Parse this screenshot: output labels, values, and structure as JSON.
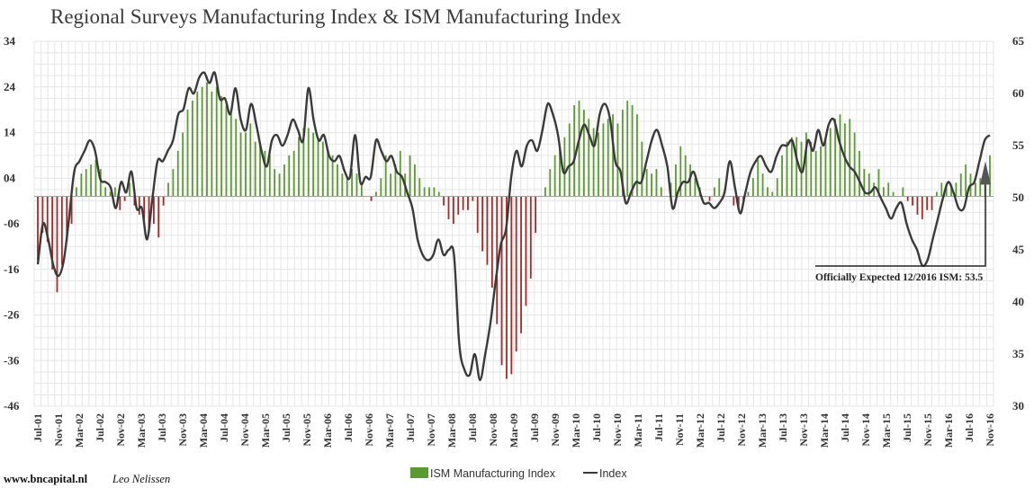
{
  "chart_data": {
    "type": "bar+line",
    "title": "Regional Surveys Manufacturing Index & ISM Manufacturing Index",
    "y_left": {
      "min": -46,
      "max": 34,
      "ticks": [
        "34",
        "24",
        "14",
        "04",
        "-06",
        "-16",
        "-26",
        "-36",
        "-46"
      ]
    },
    "y_right": {
      "min": 30,
      "max": 65,
      "ticks": [
        "65",
        "60",
        "55",
        "50",
        "45",
        "40",
        "35",
        "30"
      ]
    },
    "x_tick_labels": [
      "Jul-01",
      "Nov-01",
      "Mar-02",
      "Jul-02",
      "Nov-02",
      "Mar-03",
      "Jul-03",
      "Nov-03",
      "Mar-04",
      "Jul-04",
      "Nov-04",
      "Mar-05",
      "Jul-05",
      "Nov-05",
      "Mar-06",
      "Jul-06",
      "Nov-06",
      "Mar-07",
      "Jul-07",
      "Nov-07",
      "Mar-08",
      "Jul-08",
      "Nov-08",
      "Mar-09",
      "Jul-09",
      "Nov-09",
      "Mar-10",
      "Jul-10",
      "Nov-10",
      "Mar-11",
      "Jul-11",
      "Nov-11",
      "Mar-12",
      "Jul-12",
      "Nov-12",
      "Mar-13",
      "Jul-13",
      "Nov-13",
      "Mar-14",
      "Jul-14",
      "Nov-14",
      "Mar-15",
      "Jul-15",
      "Nov-15",
      "Mar-16",
      "Jul-16",
      "Nov-16"
    ],
    "series": [
      {
        "name": "ISM Manufacturing Index",
        "type": "bar",
        "axis": "left",
        "color_positive": "#5b9a32",
        "color_negative": "#a52a2a",
        "start": "Jul-01",
        "values": [
          -14,
          -8,
          -10,
          -16,
          -21,
          -15,
          -10,
          -6,
          2,
          5,
          6,
          7,
          8,
          6,
          2,
          1,
          2,
          -3,
          -1,
          3,
          -2,
          -4,
          -6,
          -7,
          -6,
          -9,
          -2,
          3,
          6,
          10,
          14,
          19,
          21,
          23,
          24,
          25,
          23,
          24,
          22,
          20,
          19,
          17,
          14,
          14,
          16,
          12,
          12,
          10,
          9,
          6,
          5,
          7,
          9,
          10,
          13,
          15,
          15,
          14,
          13,
          12,
          10,
          9,
          7,
          5,
          4,
          6,
          5,
          3,
          0,
          -1,
          1,
          4,
          9,
          5,
          7,
          10,
          5,
          9,
          7,
          4,
          2,
          2,
          2,
          1,
          -2,
          -5,
          -6,
          -4,
          -3,
          -3,
          -1,
          -8,
          -12,
          -15,
          -20,
          -28,
          -37,
          -40,
          -39,
          -34,
          -30,
          -24,
          -18,
          -8,
          0,
          2,
          6,
          9,
          11,
          13,
          16,
          20,
          21,
          19,
          17,
          15,
          14,
          16,
          17,
          18,
          16,
          19,
          21,
          20,
          18,
          12,
          6,
          5,
          6,
          2,
          0,
          3,
          7,
          11,
          9,
          7,
          4,
          2,
          0,
          -1,
          2,
          4,
          1,
          0,
          -2,
          -3,
          -1,
          1,
          4,
          8,
          5,
          2,
          1,
          4,
          9,
          12,
          13,
          13,
          12,
          14,
          12,
          10,
          11,
          13,
          15,
          17,
          18,
          16,
          17,
          14,
          10,
          6,
          5,
          3,
          6,
          2,
          3,
          1,
          0,
          2,
          -1,
          -2,
          -4,
          -5,
          -3,
          -3,
          1,
          3,
          2,
          2,
          3,
          5,
          7,
          5,
          3,
          4,
          6,
          9
        ]
      },
      {
        "name": "Index",
        "type": "line",
        "axis": "right",
        "color": "#3a3a3a",
        "start": "Jul-01",
        "values": [
          43.6,
          47.5,
          46.0,
          43.5,
          42.5,
          44.0,
          48.0,
          52.5,
          53.5,
          54.5,
          55.5,
          54.5,
          51.8,
          51.5,
          51.0,
          49.0,
          51.5,
          50.5,
          52.5,
          49.0,
          49.0,
          46.0,
          49.8,
          53.5,
          53.5,
          54.5,
          55.5,
          58.0,
          58.5,
          60.5,
          60.0,
          61.5,
          62.0,
          61.0,
          62.0,
          59.5,
          59.5,
          58.0,
          60.5,
          57.5,
          56.5,
          59.0,
          57.0,
          54.5,
          53.0,
          55.5,
          56.0,
          55.0,
          56.0,
          57.5,
          56.5,
          55.5,
          60.5,
          57.5,
          55.5,
          56.0,
          54.0,
          53.5,
          54.0,
          52.5,
          52.0,
          56.0,
          51.5,
          52.0,
          52.0,
          55.5,
          54.5,
          53.5,
          54.0,
          52.5,
          52.0,
          50.5,
          49.0,
          46.0,
          44.5,
          44.0,
          44.5,
          46.0,
          44.5,
          45.0,
          44.5,
          36.0,
          33.5,
          33.0,
          35.0,
          32.5,
          35.0,
          38.0,
          42.0,
          45.5,
          47.0,
          52.0,
          54.5,
          53.0,
          55.0,
          55.5,
          54.5,
          56.5,
          59.0,
          58.0,
          56.0,
          52.5,
          53.0,
          53.5,
          55.5,
          57.0,
          56.0,
          55.0,
          58.0,
          59.0,
          57.5,
          53.5,
          52.5,
          49.5,
          50.5,
          51.5,
          51.5,
          53.5,
          55.5,
          56.5,
          55.0,
          53.0,
          49.0,
          50.5,
          51.5,
          51.5,
          52.5,
          51.0,
          49.5,
          49.5,
          49.0,
          49.5,
          50.5,
          53.5,
          51.0,
          48.5,
          50.5,
          52.5,
          53.5,
          54.0,
          53.0,
          52.5,
          54.0,
          55.0,
          55.0,
          55.5,
          53.5,
          52.5,
          55.5,
          54.5,
          56.5,
          55.0,
          57.0,
          57.5,
          55.5,
          54.0,
          53.0,
          52.5,
          51.5,
          50.5,
          50.5,
          51.0,
          50.0,
          49.0,
          48.0,
          49.0,
          49.5,
          47.5,
          46.0,
          45.0,
          43.5,
          44.0,
          46.0,
          48.0,
          50.0,
          51.5,
          50.5,
          49.0,
          49.0,
          51.0,
          51.5,
          53.5,
          55.5,
          56.0
        ]
      }
    ],
    "annotation": {
      "text": "Officially Expected 12/2016 ISM: 53.5",
      "target_value": 53.5,
      "axis": "right"
    },
    "legend": {
      "position": "bottom-center",
      "items": [
        "ISM Manufacturing Index",
        "Index"
      ]
    },
    "grid": true
  },
  "credit": {
    "site": "www.bncapital.nl",
    "author": "Leo Nelissen"
  }
}
